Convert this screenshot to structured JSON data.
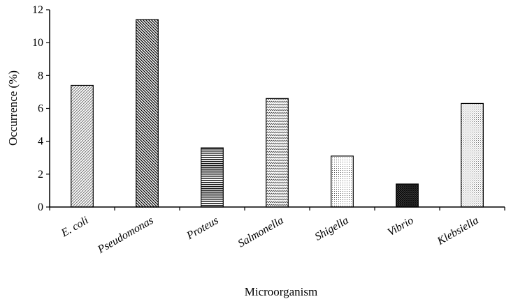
{
  "chart_data": {
    "type": "bar",
    "title": "",
    "xlabel": "Microorganism",
    "ylabel": "Occurrence (%)",
    "ylim": [
      0,
      12
    ],
    "yticks": [
      0,
      2,
      4,
      6,
      8,
      10,
      12
    ],
    "grid": false,
    "legend": "none",
    "categories": [
      "E. coli",
      "Pseudomonas",
      "Proteus",
      "Salmonella",
      "Shigella",
      "Vibrio",
      "Klebsiella"
    ],
    "values": [
      7.4,
      11.4,
      3.6,
      6.6,
      3.1,
      1.4,
      6.3
    ],
    "bar_fill": "#ffffff",
    "bar_pattern_color": "#000000"
  }
}
